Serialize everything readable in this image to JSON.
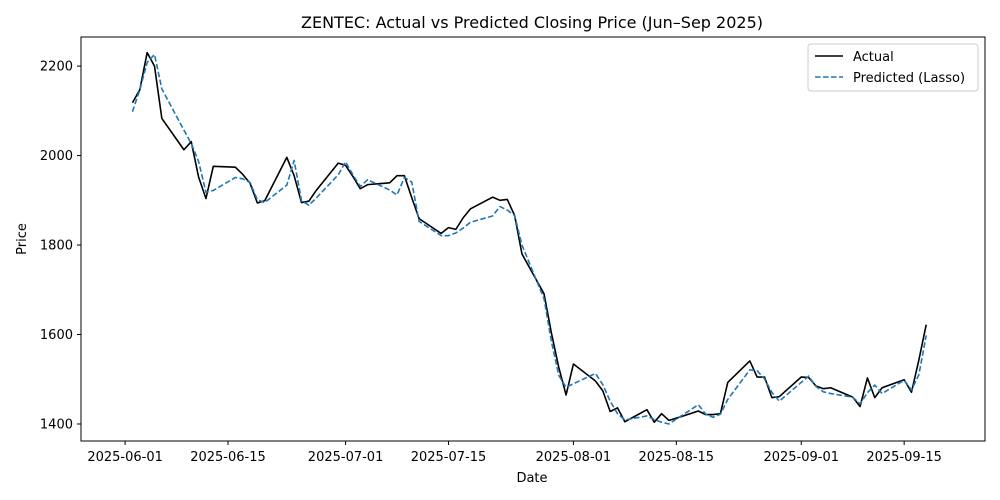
{
  "chart_data": {
    "type": "line",
    "title": "ZENTEC: Actual vs Predicted Closing Price (Jun–Sep 2025)",
    "xlabel": "Date",
    "ylabel": "Price",
    "x_range": [
      "2025-05-26",
      "2025-09-26"
    ],
    "ylim": [
      1362,
      2265
    ],
    "x_ticks": [
      "2025-06-01",
      "2025-06-15",
      "2025-07-01",
      "2025-07-15",
      "2025-08-01",
      "2025-08-15",
      "2025-09-01",
      "2025-09-15"
    ],
    "y_ticks": [
      1400,
      1600,
      1800,
      2000,
      2200
    ],
    "legend_position": "top-right",
    "series": [
      {
        "name": "Actual",
        "color": "#000000",
        "style": "solid",
        "points": [
          [
            "2025-06-02",
            2118
          ],
          [
            "2025-06-03",
            2147
          ],
          [
            "2025-06-04",
            2230
          ],
          [
            "2025-06-05",
            2200
          ],
          [
            "2025-06-06",
            2083
          ],
          [
            "2025-06-09",
            2013
          ],
          [
            "2025-06-10",
            2031
          ],
          [
            "2025-06-11",
            1952
          ],
          [
            "2025-06-12",
            1904
          ],
          [
            "2025-06-13",
            1976
          ],
          [
            "2025-06-16",
            1974
          ],
          [
            "2025-06-17",
            1958
          ],
          [
            "2025-06-18",
            1938
          ],
          [
            "2025-06-19",
            1894
          ],
          [
            "2025-06-20",
            1899
          ],
          [
            "2025-06-23",
            1996
          ],
          [
            "2025-06-24",
            1955
          ],
          [
            "2025-06-25",
            1895
          ],
          [
            "2025-06-26",
            1898
          ],
          [
            "2025-06-27",
            1922
          ],
          [
            "2025-06-30",
            1983
          ],
          [
            "2025-07-01",
            1978
          ],
          [
            "2025-07-02",
            1953
          ],
          [
            "2025-07-03",
            1926
          ],
          [
            "2025-07-04",
            1935
          ],
          [
            "2025-07-07",
            1939
          ],
          [
            "2025-07-08",
            1955
          ],
          [
            "2025-07-09",
            1955
          ],
          [
            "2025-07-10",
            1906
          ],
          [
            "2025-07-11",
            1859
          ],
          [
            "2025-07-14",
            1826
          ],
          [
            "2025-07-15",
            1839
          ],
          [
            "2025-07-16",
            1835
          ],
          [
            "2025-07-17",
            1861
          ],
          [
            "2025-07-18",
            1881
          ],
          [
            "2025-07-21",
            1907
          ],
          [
            "2025-07-22",
            1900
          ],
          [
            "2025-07-23",
            1902
          ],
          [
            "2025-07-24",
            1866
          ],
          [
            "2025-07-25",
            1780
          ],
          [
            "2025-07-28",
            1691
          ],
          [
            "2025-07-29",
            1604
          ],
          [
            "2025-07-30",
            1527
          ],
          [
            "2025-07-31",
            1465
          ],
          [
            "2025-08-01",
            1534
          ],
          [
            "2025-08-04",
            1496
          ],
          [
            "2025-08-05",
            1474
          ],
          [
            "2025-08-06",
            1428
          ],
          [
            "2025-08-07",
            1436
          ],
          [
            "2025-08-08",
            1405
          ],
          [
            "2025-08-11",
            1432
          ],
          [
            "2025-08-12",
            1404
          ],
          [
            "2025-08-13",
            1423
          ],
          [
            "2025-08-14",
            1408
          ],
          [
            "2025-08-15",
            1413
          ],
          [
            "2025-08-18",
            1429
          ],
          [
            "2025-08-19",
            1421
          ],
          [
            "2025-08-20",
            1421
          ],
          [
            "2025-08-21",
            1423
          ],
          [
            "2025-08-22",
            1493
          ],
          [
            "2025-08-25",
            1541
          ],
          [
            "2025-08-26",
            1505
          ],
          [
            "2025-08-27",
            1505
          ],
          [
            "2025-08-28",
            1459
          ],
          [
            "2025-08-29",
            1461
          ],
          [
            "2025-09-01",
            1505
          ],
          [
            "2025-09-02",
            1504
          ],
          [
            "2025-09-03",
            1485
          ],
          [
            "2025-09-04",
            1479
          ],
          [
            "2025-09-05",
            1481
          ],
          [
            "2025-09-08",
            1460
          ],
          [
            "2025-09-09",
            1439
          ],
          [
            "2025-09-10",
            1503
          ],
          [
            "2025-09-11",
            1459
          ],
          [
            "2025-09-12",
            1481
          ],
          [
            "2025-09-15",
            1499
          ],
          [
            "2025-09-16",
            1471
          ],
          [
            "2025-09-17",
            1543
          ],
          [
            "2025-09-18",
            1622
          ]
        ]
      },
      {
        "name": "Predicted (Lasso)",
        "color": "#1f77b4",
        "style": "dashed",
        "points": [
          [
            "2025-06-02",
            2098
          ],
          [
            "2025-06-03",
            2147
          ],
          [
            "2025-06-04",
            2208
          ],
          [
            "2025-06-05",
            2226
          ],
          [
            "2025-06-06",
            2149
          ],
          [
            "2025-06-09",
            2057
          ],
          [
            "2025-06-10",
            2027
          ],
          [
            "2025-06-11",
            1987
          ],
          [
            "2025-06-12",
            1918
          ],
          [
            "2025-06-13",
            1922
          ],
          [
            "2025-06-16",
            1951
          ],
          [
            "2025-06-17",
            1948
          ],
          [
            "2025-06-18",
            1940
          ],
          [
            "2025-06-19",
            1901
          ],
          [
            "2025-06-20",
            1895
          ],
          [
            "2025-06-23",
            1934
          ],
          [
            "2025-06-24",
            1989
          ],
          [
            "2025-06-25",
            1899
          ],
          [
            "2025-06-26",
            1889
          ],
          [
            "2025-06-27",
            1905
          ],
          [
            "2025-06-30",
            1957
          ],
          [
            "2025-07-01",
            1986
          ],
          [
            "2025-07-02",
            1957
          ],
          [
            "2025-07-03",
            1931
          ],
          [
            "2025-07-04",
            1946
          ],
          [
            "2025-07-07",
            1923
          ],
          [
            "2025-07-08",
            1912
          ],
          [
            "2025-07-09",
            1951
          ],
          [
            "2025-07-10",
            1941
          ],
          [
            "2025-07-11",
            1853
          ],
          [
            "2025-07-14",
            1821
          ],
          [
            "2025-07-15",
            1821
          ],
          [
            "2025-07-16",
            1827
          ],
          [
            "2025-07-17",
            1838
          ],
          [
            "2025-07-18",
            1851
          ],
          [
            "2025-07-21",
            1865
          ],
          [
            "2025-07-22",
            1886
          ],
          [
            "2025-07-23",
            1878
          ],
          [
            "2025-07-24",
            1866
          ],
          [
            "2025-07-25",
            1800
          ],
          [
            "2025-07-28",
            1680
          ],
          [
            "2025-07-29",
            1585
          ],
          [
            "2025-07-30",
            1509
          ],
          [
            "2025-07-31",
            1482
          ],
          [
            "2025-08-01",
            1490
          ],
          [
            "2025-08-04",
            1513
          ],
          [
            "2025-08-05",
            1488
          ],
          [
            "2025-08-06",
            1451
          ],
          [
            "2025-08-07",
            1423
          ],
          [
            "2025-08-08",
            1409
          ],
          [
            "2025-08-11",
            1418
          ],
          [
            "2025-08-12",
            1410
          ],
          [
            "2025-08-13",
            1404
          ],
          [
            "2025-08-14",
            1400
          ],
          [
            "2025-08-15",
            1411
          ],
          [
            "2025-08-18",
            1443
          ],
          [
            "2025-08-19",
            1422
          ],
          [
            "2025-08-20",
            1415
          ],
          [
            "2025-08-21",
            1422
          ],
          [
            "2025-08-22",
            1455
          ],
          [
            "2025-08-25",
            1521
          ],
          [
            "2025-08-26",
            1519
          ],
          [
            "2025-08-27",
            1501
          ],
          [
            "2025-08-28",
            1471
          ],
          [
            "2025-08-29",
            1451
          ],
          [
            "2025-09-01",
            1493
          ],
          [
            "2025-09-02",
            1507
          ],
          [
            "2025-09-03",
            1484
          ],
          [
            "2025-09-04",
            1472
          ],
          [
            "2025-09-05",
            1468
          ],
          [
            "2025-09-08",
            1460
          ],
          [
            "2025-09-09",
            1445
          ],
          [
            "2025-09-10",
            1470
          ],
          [
            "2025-09-11",
            1487
          ],
          [
            "2025-09-12",
            1468
          ],
          [
            "2025-09-15",
            1498
          ],
          [
            "2025-09-16",
            1476
          ],
          [
            "2025-09-17",
            1510
          ],
          [
            "2025-09-18",
            1598
          ]
        ]
      }
    ]
  }
}
